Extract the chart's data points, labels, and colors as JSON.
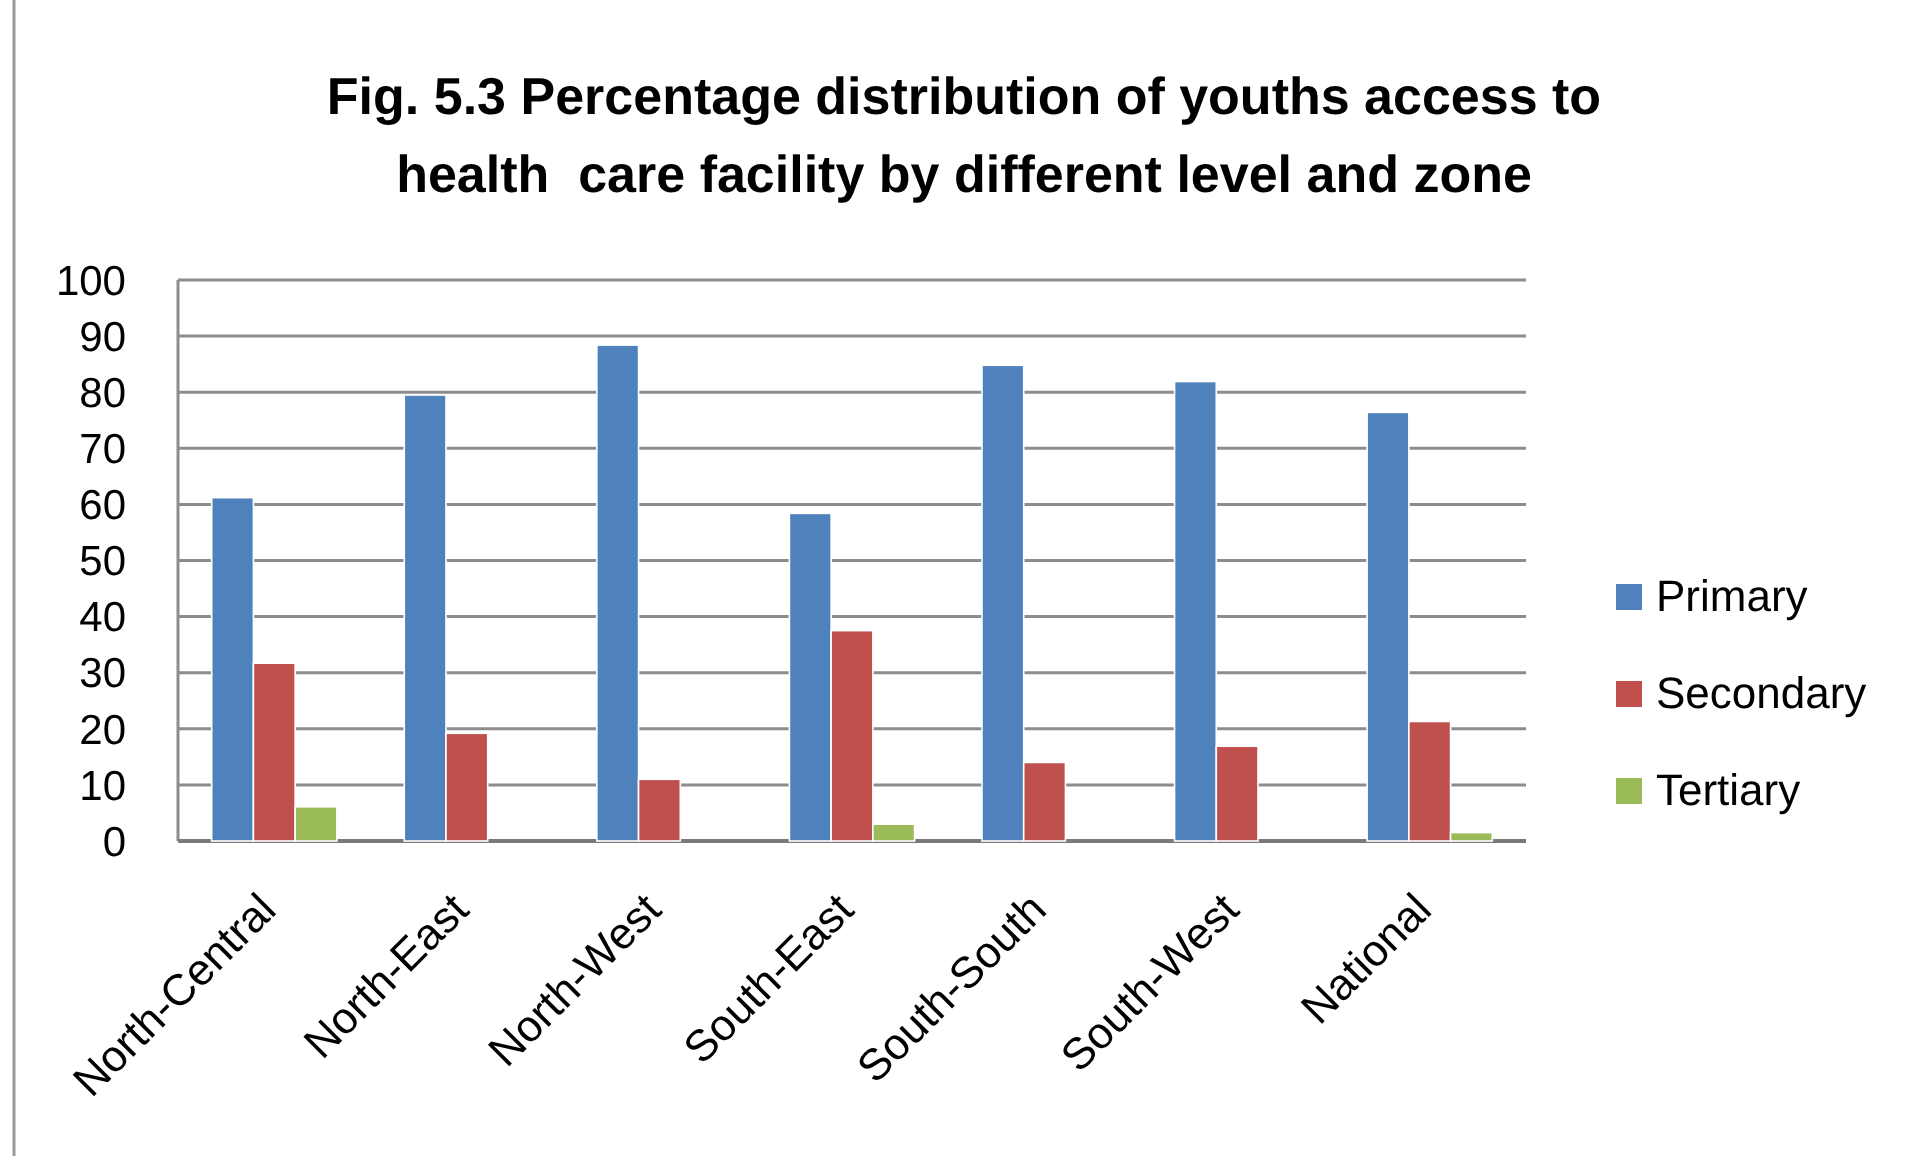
{
  "chart_data": {
    "type": "bar",
    "title": "Fig. 5.3 Percentage distribution of youths access to\nhealth  care facility by different level and zone",
    "categories": [
      "North-Central",
      "North-East",
      "North-West",
      "South-East",
      "South-South",
      "South-West",
      "National"
    ],
    "series": [
      {
        "name": "Primary",
        "color": "#4f81bd",
        "values": [
          61.2,
          79.5,
          88.4,
          58.4,
          84.8,
          81.9,
          76.4
        ]
      },
      {
        "name": "Secondary",
        "color": "#c0504d",
        "values": [
          31.7,
          19.2,
          11.0,
          37.5,
          14.0,
          16.9,
          21.3
        ]
      },
      {
        "name": "Tertiary",
        "color": "#9bbb59",
        "values": [
          6.1,
          0,
          0,
          3.0,
          0,
          0,
          1.5
        ]
      }
    ],
    "ylim": [
      0,
      100
    ],
    "yticks": [
      0,
      10,
      20,
      30,
      40,
      50,
      60,
      70,
      80,
      90,
      100
    ],
    "grid": "y",
    "legend": "right"
  }
}
